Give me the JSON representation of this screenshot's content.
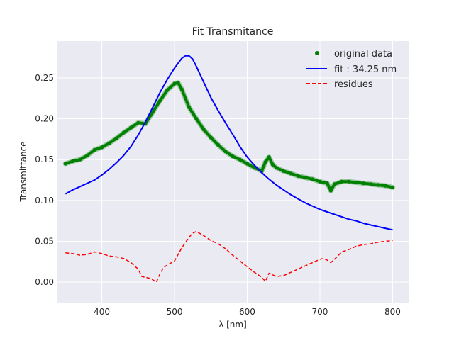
{
  "chart_data": {
    "type": "line",
    "title": "Fit Transmitance",
    "xlabel": "λ [nm]",
    "ylabel": "Transmittance",
    "xlim": [
      338,
      822
    ],
    "ylim": [
      -0.025,
      0.295
    ],
    "xticks": [
      400,
      500,
      600,
      700,
      800
    ],
    "yticks": [
      0.0,
      0.05,
      0.1,
      0.15,
      0.2,
      0.25
    ],
    "grid": true,
    "legend_position": "top-right",
    "series": [
      {
        "name": "original data",
        "style": "markers",
        "color": "#008000",
        "x": [
          350,
          360,
          370,
          380,
          390,
          400,
          410,
          420,
          430,
          440,
          450,
          460,
          470,
          480,
          490,
          500,
          505,
          510,
          520,
          530,
          540,
          550,
          560,
          570,
          580,
          590,
          600,
          610,
          620,
          625,
          630,
          635,
          640,
          650,
          660,
          670,
          680,
          690,
          700,
          710,
          715,
          720,
          730,
          740,
          750,
          760,
          770,
          780,
          790,
          800
        ],
        "y": [
          0.145,
          0.148,
          0.15,
          0.155,
          0.162,
          0.165,
          0.17,
          0.176,
          0.183,
          0.189,
          0.195,
          0.194,
          0.208,
          0.222,
          0.235,
          0.243,
          0.244,
          0.236,
          0.214,
          0.2,
          0.187,
          0.177,
          0.168,
          0.16,
          0.154,
          0.15,
          0.145,
          0.14,
          0.136,
          0.147,
          0.153,
          0.144,
          0.14,
          0.136,
          0.133,
          0.13,
          0.128,
          0.126,
          0.123,
          0.121,
          0.112,
          0.12,
          0.123,
          0.123,
          0.122,
          0.121,
          0.12,
          0.119,
          0.118,
          0.116
        ]
      },
      {
        "name": "fit : 34.25 nm",
        "style": "solid",
        "color": "#0000ff",
        "x": [
          350,
          360,
          370,
          380,
          390,
          400,
          410,
          420,
          430,
          440,
          450,
          460,
          470,
          480,
          490,
          500,
          510,
          515,
          520,
          525,
          530,
          540,
          550,
          560,
          570,
          580,
          590,
          600,
          610,
          620,
          630,
          640,
          650,
          660,
          670,
          680,
          690,
          700,
          710,
          720,
          730,
          740,
          750,
          760,
          770,
          780,
          790,
          800
        ],
        "y": [
          0.108,
          0.113,
          0.117,
          0.121,
          0.125,
          0.131,
          0.138,
          0.146,
          0.155,
          0.166,
          0.18,
          0.196,
          0.214,
          0.232,
          0.248,
          0.262,
          0.274,
          0.277,
          0.277,
          0.273,
          0.264,
          0.245,
          0.226,
          0.21,
          0.195,
          0.181,
          0.166,
          0.153,
          0.143,
          0.134,
          0.126,
          0.119,
          0.113,
          0.107,
          0.102,
          0.097,
          0.093,
          0.089,
          0.086,
          0.083,
          0.08,
          0.077,
          0.075,
          0.072,
          0.07,
          0.068,
          0.066,
          0.064
        ]
      },
      {
        "name": "residues",
        "style": "dashed",
        "color": "#ff0000",
        "x": [
          350,
          360,
          370,
          380,
          390,
          400,
          410,
          420,
          430,
          440,
          450,
          455,
          460,
          465,
          470,
          475,
          480,
          485,
          490,
          500,
          510,
          520,
          525,
          530,
          540,
          550,
          560,
          570,
          580,
          590,
          600,
          610,
          615,
          620,
          625,
          630,
          640,
          650,
          660,
          670,
          680,
          690,
          700,
          705,
          710,
          715,
          720,
          730,
          740,
          750,
          760,
          770,
          780,
          790,
          800
        ],
        "y": [
          0.036,
          0.035,
          0.033,
          0.034,
          0.037,
          0.035,
          0.032,
          0.031,
          0.029,
          0.024,
          0.016,
          0.007,
          0.006,
          0.005,
          0.003,
          0.0,
          0.01,
          0.018,
          0.021,
          0.026,
          0.042,
          0.055,
          0.06,
          0.062,
          0.057,
          0.051,
          0.047,
          0.041,
          0.033,
          0.026,
          0.019,
          0.012,
          0.009,
          0.006,
          0.001,
          0.011,
          0.007,
          0.008,
          0.012,
          0.016,
          0.02,
          0.024,
          0.028,
          0.029,
          0.027,
          0.024,
          0.028,
          0.037,
          0.04,
          0.044,
          0.046,
          0.047,
          0.049,
          0.05,
          0.051
        ]
      }
    ]
  }
}
